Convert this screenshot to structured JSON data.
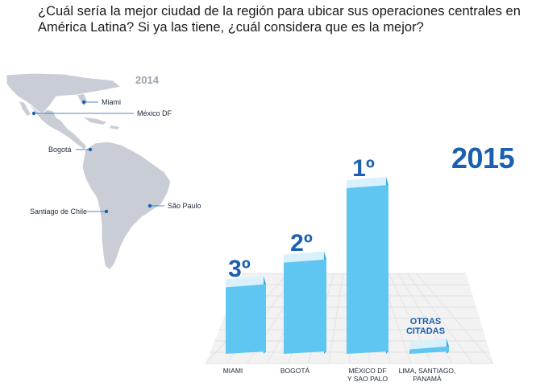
{
  "question": "¿Cuál sería la mejor ciudad de la región para ubicar sus operaciones centrales en América Latina? Si ya las tiene, ¿cuál considera que es la mejor?",
  "map": {
    "year": "2014",
    "cities": [
      "Miami",
      "México DF",
      "Bogotá",
      "Santiago de Chile",
      "São Paulo"
    ]
  },
  "colors": {
    "bar_front": "#5fc6f1",
    "bar_top": "#d9f1fc",
    "bar_side": "#3aa9dc",
    "accent": "#1b5fb0",
    "map_fill": "#c9ced6",
    "grid": "#e3e3e3"
  },
  "chart_data": {
    "type": "bar",
    "title": "2015",
    "categories": [
      "MIAMI",
      "BOGOTÁ",
      "MÉXICO DF Y SAO PALO",
      "LIMA, SANTIAGO, PANAMÁ"
    ],
    "category_lines": [
      [
        "MIAMI"
      ],
      [
        "BOGOTÁ"
      ],
      [
        "MÉXICO DF",
        "Y SAO PALO"
      ],
      [
        "LIMA, SANTIAGO,",
        "PANAMÁ"
      ]
    ],
    "rank_labels": [
      "3º",
      "2º",
      "1º",
      ""
    ],
    "group_label_lines": [
      "OTRAS",
      "CITADAS"
    ],
    "values": [
      3,
      4,
      7,
      0.5
    ],
    "ylim": [
      0,
      7
    ],
    "xlabel": "",
    "ylabel": ""
  }
}
